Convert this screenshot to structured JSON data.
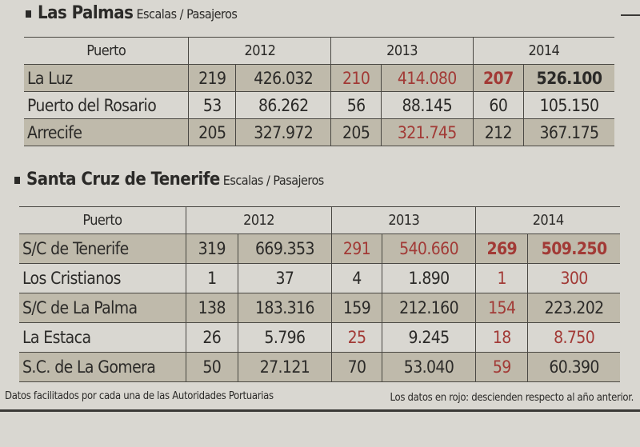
{
  "colors": {
    "text": "#2b2a28",
    "red": "#a23a36",
    "shade": "#bfbaab",
    "paper": "#d9d7d1"
  },
  "tables": [
    {
      "title": "Las Palmas",
      "subtitle": "Escalas / Pasajeros",
      "header": {
        "puerto": "Puerto",
        "years": [
          "2012",
          "2013",
          "2014"
        ]
      },
      "rows": [
        {
          "name": "La Luz",
          "cells": [
            {
              "v": "219"
            },
            {
              "v": "426.032"
            },
            {
              "v": "210",
              "red": true
            },
            {
              "v": "414.080",
              "red": true
            },
            {
              "v": "207",
              "red": true,
              "bold": true
            },
            {
              "v": "526.100",
              "bold": true
            }
          ]
        },
        {
          "name": "Puerto del Rosario",
          "cells": [
            {
              "v": "53"
            },
            {
              "v": "86.262"
            },
            {
              "v": "56"
            },
            {
              "v": "88.145"
            },
            {
              "v": "60"
            },
            {
              "v": "105.150"
            }
          ]
        },
        {
          "name": "Arrecife",
          "cells": [
            {
              "v": "205"
            },
            {
              "v": "327.972"
            },
            {
              "v": "205"
            },
            {
              "v": "321.745",
              "red": true
            },
            {
              "v": "212"
            },
            {
              "v": "367.175"
            }
          ]
        }
      ]
    },
    {
      "title": "Santa Cruz de Tenerife",
      "subtitle": "Escalas / Pasajeros",
      "header": {
        "puerto": "Puerto",
        "years": [
          "2012",
          "2013",
          "2014"
        ]
      },
      "rows": [
        {
          "name": "S/C de Tenerife",
          "cells": [
            {
              "v": "319"
            },
            {
              "v": "669.353"
            },
            {
              "v": "291",
              "red": true
            },
            {
              "v": "540.660",
              "red": true
            },
            {
              "v": "269",
              "red": true,
              "bold": true
            },
            {
              "v": "509.250",
              "red": true,
              "bold": true
            }
          ]
        },
        {
          "name": "Los Cristianos",
          "cells": [
            {
              "v": "1"
            },
            {
              "v": "37"
            },
            {
              "v": "4"
            },
            {
              "v": "1.890"
            },
            {
              "v": "1",
              "red": true
            },
            {
              "v": "300",
              "red": true
            }
          ]
        },
        {
          "name": "S/C de La Palma",
          "cells": [
            {
              "v": "138"
            },
            {
              "v": "183.316"
            },
            {
              "v": "159"
            },
            {
              "v": "212.160"
            },
            {
              "v": "154",
              "red": true
            },
            {
              "v": "223.202"
            }
          ]
        },
        {
          "name": "La Estaca",
          "cells": [
            {
              "v": "26"
            },
            {
              "v": "5.796"
            },
            {
              "v": "25",
              "red": true
            },
            {
              "v": "9.245"
            },
            {
              "v": "18",
              "red": true
            },
            {
              "v": "8.750",
              "red": true
            }
          ]
        },
        {
          "name": "S.C. de La Gomera",
          "cells": [
            {
              "v": "50"
            },
            {
              "v": "27.121"
            },
            {
              "v": "70"
            },
            {
              "v": "53.040"
            },
            {
              "v": "59",
              "red": true
            },
            {
              "v": "60.390"
            }
          ]
        }
      ]
    }
  ],
  "footer": {
    "source": "Datos facilitados por cada una de las Autoridades Portuarias",
    "note": "Los datos en rojo: descienden respecto al año anterior."
  }
}
